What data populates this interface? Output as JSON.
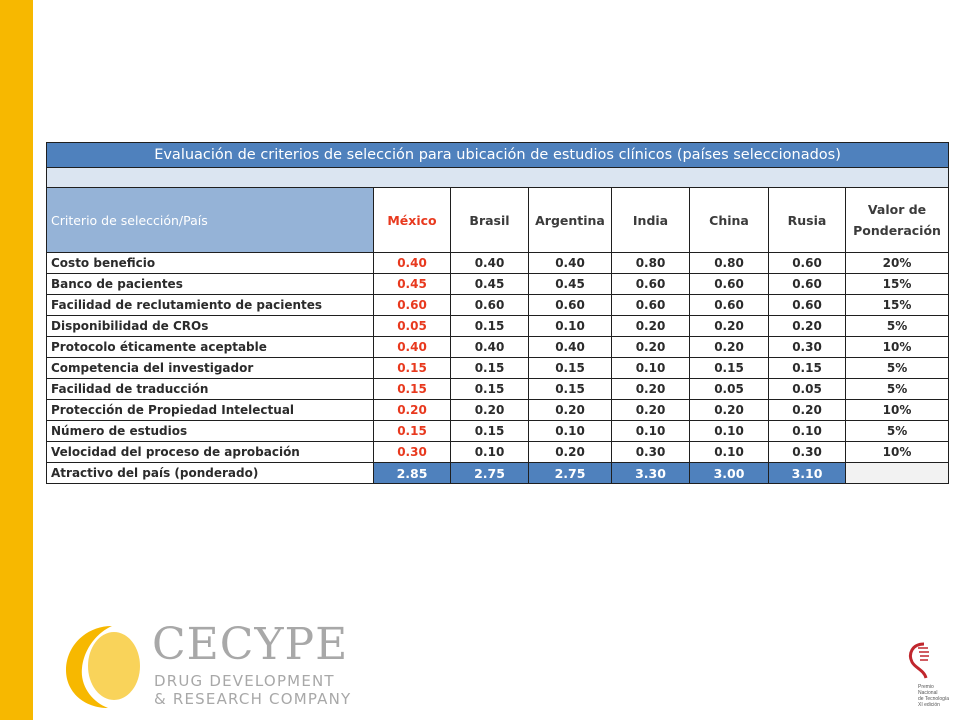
{
  "table": {
    "title": "Evaluación de criterios de selección para ubicación de estudios clínicos (países seleccionados)",
    "header": {
      "criterion": "Criterio de selección/País",
      "countries": [
        "México",
        "Brasil",
        "Argentina",
        "India",
        "China",
        "Rusia"
      ],
      "weight": "Valor de Ponderación"
    },
    "rows": [
      {
        "criterion": "Costo beneficio",
        "values": [
          "0.40",
          "0.40",
          "0.40",
          "0.80",
          "0.80",
          "0.60"
        ],
        "weight": "20%"
      },
      {
        "criterion": "Banco de pacientes",
        "values": [
          "0.45",
          "0.45",
          "0.45",
          "0.60",
          "0.60",
          "0.60"
        ],
        "weight": "15%"
      },
      {
        "criterion": "Facilidad de reclutamiento de pacientes",
        "values": [
          "0.60",
          "0.60",
          "0.60",
          "0.60",
          "0.60",
          "0.60"
        ],
        "weight": "15%"
      },
      {
        "criterion": "Disponibilidad de CROs",
        "values": [
          "0.05",
          "0.15",
          "0.10",
          "0.20",
          "0.20",
          "0.20"
        ],
        "weight": "5%"
      },
      {
        "criterion": "Protocolo éticamente aceptable",
        "values": [
          "0.40",
          "0.40",
          "0.40",
          "0.20",
          "0.20",
          "0.30"
        ],
        "weight": "10%"
      },
      {
        "criterion": "Competencia del investigador",
        "values": [
          "0.15",
          "0.15",
          "0.15",
          "0.10",
          "0.15",
          "0.15"
        ],
        "weight": "5%"
      },
      {
        "criterion": "Facilidad de traducción",
        "values": [
          "0.15",
          "0.15",
          "0.15",
          "0.20",
          "0.05",
          "0.05"
        ],
        "weight": "5%"
      },
      {
        "criterion": "Protección de Propiedad Intelectual",
        "values": [
          "0.20",
          "0.20",
          "0.20",
          "0.20",
          "0.20",
          "0.20"
        ],
        "weight": "10%"
      },
      {
        "criterion": "Número de estudios",
        "values": [
          "0.15",
          "0.15",
          "0.10",
          "0.10",
          "0.10",
          "0.10"
        ],
        "weight": "5%"
      },
      {
        "criterion": "Velocidad del proceso de aprobación",
        "values": [
          "0.30",
          "0.10",
          "0.20",
          "0.30",
          "0.10",
          "0.30"
        ],
        "weight": "10%"
      }
    ],
    "total": {
      "criterion": "Atractivo del país (ponderado)",
      "values": [
        "2.85",
        "2.75",
        "2.75",
        "3.30",
        "3.00",
        "3.10"
      ]
    }
  },
  "logo": {
    "name": "CECYPE",
    "line1": "DRUG DEVELOPMENT",
    "line2": "& RESEARCH COMPANY",
    "icon": "crescent-logo-icon"
  },
  "award": {
    "lines": [
      "Premio",
      "Nacional",
      "de Tecnología",
      "XI edición"
    ],
    "icon": "award-emblem-icon"
  },
  "colors": {
    "side_bar": "#f7b800",
    "header_blue": "#4f81bd",
    "light_blue": "#dbe5f1",
    "mexico_red": "#e8391e"
  }
}
